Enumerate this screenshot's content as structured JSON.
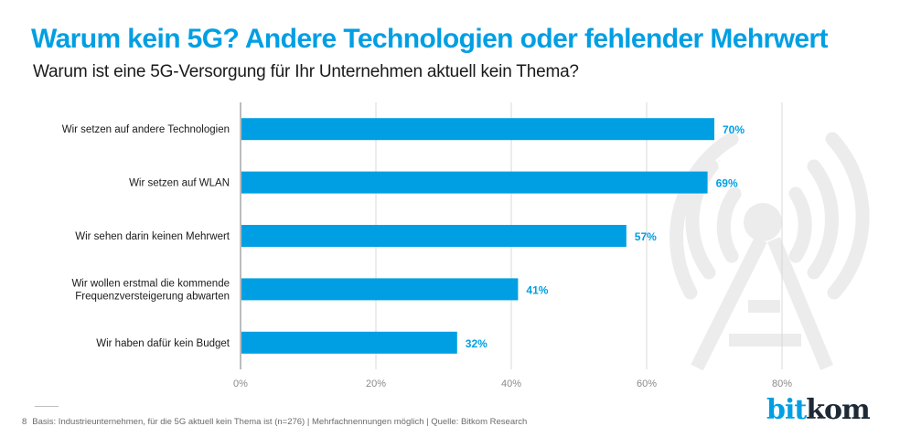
{
  "header": {
    "title": "Warum kein 5G? Andere Technologien oder fehlender Mehrwert",
    "subtitle": "Warum ist eine 5G-Versorgung für Ihr Unternehmen aktuell kein Thema?"
  },
  "chart_data": {
    "type": "bar",
    "orientation": "horizontal",
    "title": "Warum kein 5G? Andere Technologien oder fehlender Mehrwert",
    "subtitle": "Warum ist eine 5G-Versorgung für Ihr Unternehmen aktuell kein Thema?",
    "categories": [
      [
        "Wir setzen auf andere Technologien"
      ],
      [
        "Wir setzen auf WLAN"
      ],
      [
        "Wir sehen darin keinen Mehrwert"
      ],
      [
        "Wir wollen erstmal die kommende",
        "Frequenzversteigerung abwarten"
      ],
      [
        "Wir haben dafür kein Budget"
      ]
    ],
    "values": [
      70,
      69,
      57,
      41,
      32
    ],
    "value_labels": [
      "70%",
      "69%",
      "57%",
      "41%",
      "32%"
    ],
    "xlabel": "",
    "ylabel": "",
    "xlim": [
      0,
      80
    ],
    "ticks": [
      0,
      20,
      40,
      60,
      80
    ],
    "tick_labels": [
      "0%",
      "20%",
      "40%",
      "60%",
      "80%"
    ],
    "grid": true,
    "bar_color": "#009fe3",
    "label_color": "#009fe3"
  },
  "footnote": {
    "page_number": "8",
    "text": "Basis: Industrieunternehmen,  für die 5G aktuell kein Thema ist (n=276) | Mehrfachnennungen möglich | Quelle: Bitkom Research"
  },
  "logo": {
    "part1": "bit",
    "part2": "kom"
  },
  "watermark": {
    "icon": "radio-tower-icon"
  }
}
